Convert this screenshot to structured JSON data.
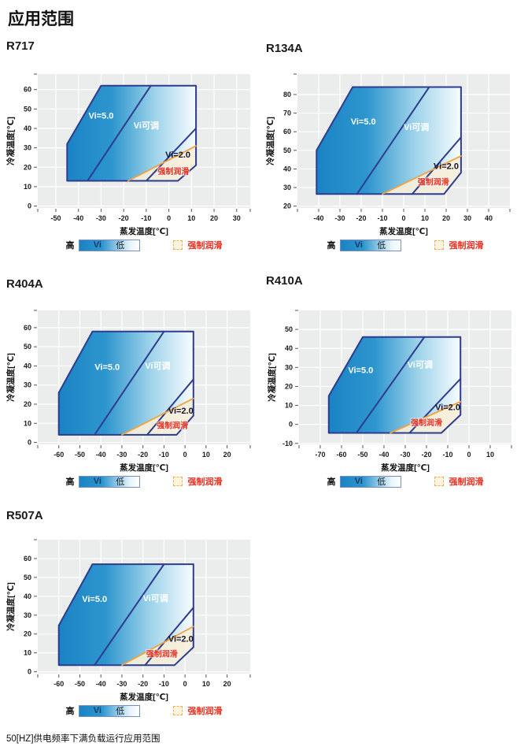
{
  "page": {
    "title": "应用范围",
    "footer": "50[HZ]供电频率下满负载运行应用范围",
    "background": "#ffffff"
  },
  "legend": {
    "high": "高",
    "vi": "Vi",
    "low": "低",
    "lube": "强制润滑"
  },
  "colors": {
    "boundary": "#2d3c8f",
    "orange": "#f0a23e",
    "red": "#e63020",
    "plot_bg": "#ebecec",
    "grid": "#ffffff",
    "tick": "#555555",
    "lube_fill": "#f7efd9",
    "envelope_gradient": [
      [
        "0",
        "#1a83c4"
      ],
      [
        "0.35",
        "#2e96ce"
      ],
      [
        "0.68",
        "#9ed3ea"
      ],
      [
        "1",
        "#f8fcff"
      ]
    ]
  },
  "chart_data": [
    {
      "type": "area",
      "title": "R717",
      "xlabel": "蒸发温度[℃]",
      "ylabel": "冷凝温度[℃]",
      "xlim": [
        -58,
        36
      ],
      "ylim": [
        -1,
        68
      ],
      "x_ticks": [
        -50,
        -40,
        -30,
        -20,
        -10,
        0,
        10,
        20,
        30
      ],
      "y_ticks": [
        0,
        10,
        20,
        30,
        40,
        50,
        60
      ],
      "envelope": [
        [
          -45,
          13
        ],
        [
          -45,
          32
        ],
        [
          -30,
          62
        ],
        [
          12,
          62
        ],
        [
          12,
          21
        ],
        [
          4,
          13
        ]
      ],
      "vi5_boundary": [
        [
          -36,
          13
        ],
        [
          -8,
          62
        ]
      ],
      "vi2_boundary": [
        [
          -10,
          13
        ],
        [
          12,
          40
        ]
      ],
      "forced_lube_line": [
        [
          -18,
          13
        ],
        [
          12,
          31
        ]
      ],
      "forced_lube_region": [
        [
          -18,
          13
        ],
        [
          4,
          13
        ],
        [
          12,
          21
        ],
        [
          12,
          31
        ]
      ],
      "labels": [
        {
          "text": "Vi=5.0",
          "x": -30,
          "y": 45,
          "style": "white"
        },
        {
          "text": "Vi可调",
          "x": -10,
          "y": 40,
          "style": "white"
        },
        {
          "text": "Vi=2.0",
          "x": 4,
          "y": 25,
          "style": "dark"
        },
        {
          "text": "强制润滑",
          "x": 2,
          "y": 16.5,
          "style": "red"
        }
      ]
    },
    {
      "type": "area",
      "title": "R134A",
      "xlabel": "蒸发温度[℃]",
      "ylabel": "冷凝温度[℃]",
      "xlim": [
        -50,
        50
      ],
      "ylim": [
        19,
        91
      ],
      "x_ticks": [
        -40,
        -30,
        -20,
        -10,
        0,
        10,
        20,
        30,
        40
      ],
      "y_ticks": [
        20,
        30,
        40,
        50,
        60,
        70,
        80
      ],
      "envelope": [
        [
          -41,
          26.5
        ],
        [
          -41,
          50
        ],
        [
          -24,
          84
        ],
        [
          27,
          84
        ],
        [
          27,
          38
        ],
        [
          19,
          26.5
        ]
      ],
      "vi5_boundary": [
        [
          -22,
          26.5
        ],
        [
          12,
          84
        ]
      ],
      "vi2_boundary": [
        [
          4,
          26.5
        ],
        [
          27,
          57
        ]
      ],
      "forced_lube_line": [
        [
          -10,
          26.5
        ],
        [
          27,
          47
        ]
      ],
      "forced_lube_region": [
        [
          -10,
          26.5
        ],
        [
          19,
          26.5
        ],
        [
          27,
          38
        ],
        [
          27,
          47
        ]
      ],
      "labels": [
        {
          "text": "Vi=5.0",
          "x": -19,
          "y": 64,
          "style": "white"
        },
        {
          "text": "Vi可调",
          "x": 6,
          "y": 61,
          "style": "white"
        },
        {
          "text": "Vi=2.0",
          "x": 20,
          "y": 40,
          "style": "dark"
        },
        {
          "text": "强制润滑",
          "x": 14,
          "y": 31.5,
          "style": "red"
        }
      ]
    },
    {
      "type": "area",
      "title": "R404A",
      "xlabel": "蒸发温度[℃]",
      "ylabel": "冷凝温度[℃]",
      "xlim": [
        -70,
        31
      ],
      "ylim": [
        -1,
        69
      ],
      "x_ticks": [
        -60,
        -50,
        -40,
        -30,
        -20,
        -10,
        0,
        10,
        20
      ],
      "y_ticks": [
        0,
        10,
        20,
        30,
        40,
        50,
        60
      ],
      "envelope": [
        [
          -60,
          4
        ],
        [
          -60,
          26
        ],
        [
          -44,
          58
        ],
        [
          4,
          58
        ],
        [
          4,
          14
        ],
        [
          -4,
          4
        ]
      ],
      "vi5_boundary": [
        [
          -43,
          4
        ],
        [
          -10,
          58
        ]
      ],
      "vi2_boundary": [
        [
          -18,
          4
        ],
        [
          4,
          33
        ]
      ],
      "forced_lube_line": [
        [
          -30,
          4
        ],
        [
          4,
          23
        ]
      ],
      "forced_lube_region": [
        [
          -30,
          4
        ],
        [
          -4,
          4
        ],
        [
          4,
          14
        ],
        [
          4,
          23
        ]
      ],
      "labels": [
        {
          "text": "Vi=5.0",
          "x": -37,
          "y": 38,
          "style": "white"
        },
        {
          "text": "Vi可调",
          "x": -13,
          "y": 38.5,
          "style": "white"
        },
        {
          "text": "Vi=2.0",
          "x": -2,
          "y": 15,
          "style": "dark"
        },
        {
          "text": "强制润滑",
          "x": -6,
          "y": 7.5,
          "style": "red"
        }
      ]
    },
    {
      "type": "area",
      "title": "R410A",
      "xlabel": "蒸发温度[℃]",
      "ylabel": "冷凝温度[℃]",
      "xlim": [
        -80,
        20
      ],
      "ylim": [
        -10.5,
        60
      ],
      "x_ticks": [
        -70,
        -60,
        -50,
        -40,
        -30,
        -20,
        -10,
        0,
        10
      ],
      "y_ticks": [
        -10,
        0,
        10,
        20,
        30,
        40,
        50
      ],
      "envelope": [
        [
          -66,
          -4.5
        ],
        [
          -66,
          15
        ],
        [
          -50,
          46
        ],
        [
          -4,
          46
        ],
        [
          -4,
          5
        ],
        [
          -13,
          -4.5
        ]
      ],
      "vi5_boundary": [
        [
          -53,
          -4.5
        ],
        [
          -21,
          46
        ]
      ],
      "vi2_boundary": [
        [
          -28,
          -4.5
        ],
        [
          -4,
          24
        ]
      ],
      "forced_lube_line": [
        [
          -37,
          -4.5
        ],
        [
          -4,
          12
        ]
      ],
      "forced_lube_region": [
        [
          -37,
          -4.5
        ],
        [
          -13,
          -4.5
        ],
        [
          -4,
          5
        ],
        [
          -4,
          12
        ]
      ],
      "labels": [
        {
          "text": "Vi=5.0",
          "x": -51,
          "y": 27,
          "style": "white"
        },
        {
          "text": "Vi可调",
          "x": -23,
          "y": 30,
          "style": "white"
        },
        {
          "text": "Vi=2.0",
          "x": -10,
          "y": 7.5,
          "style": "dark"
        },
        {
          "text": "强制润滑",
          "x": -20,
          "y": -0.5,
          "style": "red"
        }
      ]
    },
    {
      "type": "area",
      "title": "R507A",
      "xlabel": "蒸发温度[℃]",
      "ylabel": "冷凝温度[℃]",
      "xlim": [
        -70,
        31
      ],
      "ylim": [
        -1,
        70
      ],
      "x_ticks": [
        -60,
        -50,
        -40,
        -30,
        -20,
        -10,
        0,
        10,
        20
      ],
      "y_ticks": [
        0,
        10,
        20,
        30,
        40,
        50,
        60
      ],
      "envelope": [
        [
          -60,
          3.5
        ],
        [
          -60,
          24.5
        ],
        [
          -44,
          57
        ],
        [
          4,
          57
        ],
        [
          4,
          13
        ],
        [
          -5,
          3.5
        ]
      ],
      "vi5_boundary": [
        [
          -43,
          3.5
        ],
        [
          -10,
          57
        ]
      ],
      "vi2_boundary": [
        [
          -19,
          3.5
        ],
        [
          4,
          34
        ]
      ],
      "forced_lube_line": [
        [
          -30,
          3.5
        ],
        [
          4,
          24
        ]
      ],
      "forced_lube_region": [
        [
          -30,
          3.5
        ],
        [
          -5,
          3.5
        ],
        [
          4,
          13
        ],
        [
          4,
          24
        ]
      ],
      "labels": [
        {
          "text": "Vi=5.0",
          "x": -43,
          "y": 37,
          "style": "white"
        },
        {
          "text": "Vi可调",
          "x": -14,
          "y": 37.5,
          "style": "white"
        },
        {
          "text": "Vi=2.0",
          "x": -2,
          "y": 16,
          "style": "dark"
        },
        {
          "text": "强制润滑",
          "x": -11,
          "y": 8,
          "style": "red"
        }
      ]
    }
  ]
}
